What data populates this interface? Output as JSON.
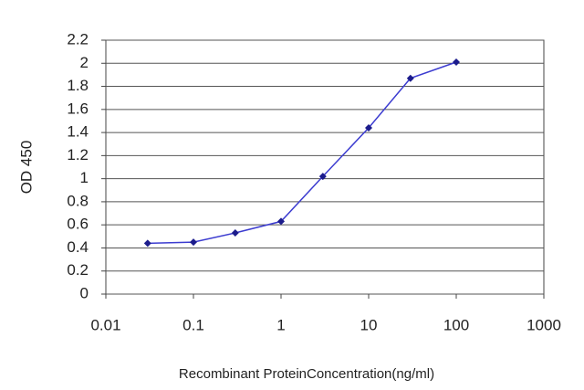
{
  "chart_data": {
    "type": "line",
    "xlabel": "Recombinant ProteinConcentration(ng/ml)",
    "ylabel": "OD 450",
    "x": [
      0.03,
      0.1,
      0.3,
      1,
      3,
      10,
      30,
      100
    ],
    "series": [
      {
        "color": "#1c1c8c",
        "values": [
          0.44,
          0.45,
          0.53,
          0.63,
          1.02,
          1.44,
          1.87,
          2.01
        ]
      }
    ],
    "xscale": "log",
    "xlim": [
      0.01,
      1000
    ],
    "xticks": [
      0.01,
      0.1,
      1,
      10,
      100,
      1000
    ],
    "ylim": [
      0,
      2.2
    ],
    "yticks": [
      0,
      0.2,
      0.4,
      0.6,
      0.8,
      1,
      1.2,
      1.4,
      1.6,
      1.8,
      2,
      2.2
    ],
    "grid": true
  }
}
